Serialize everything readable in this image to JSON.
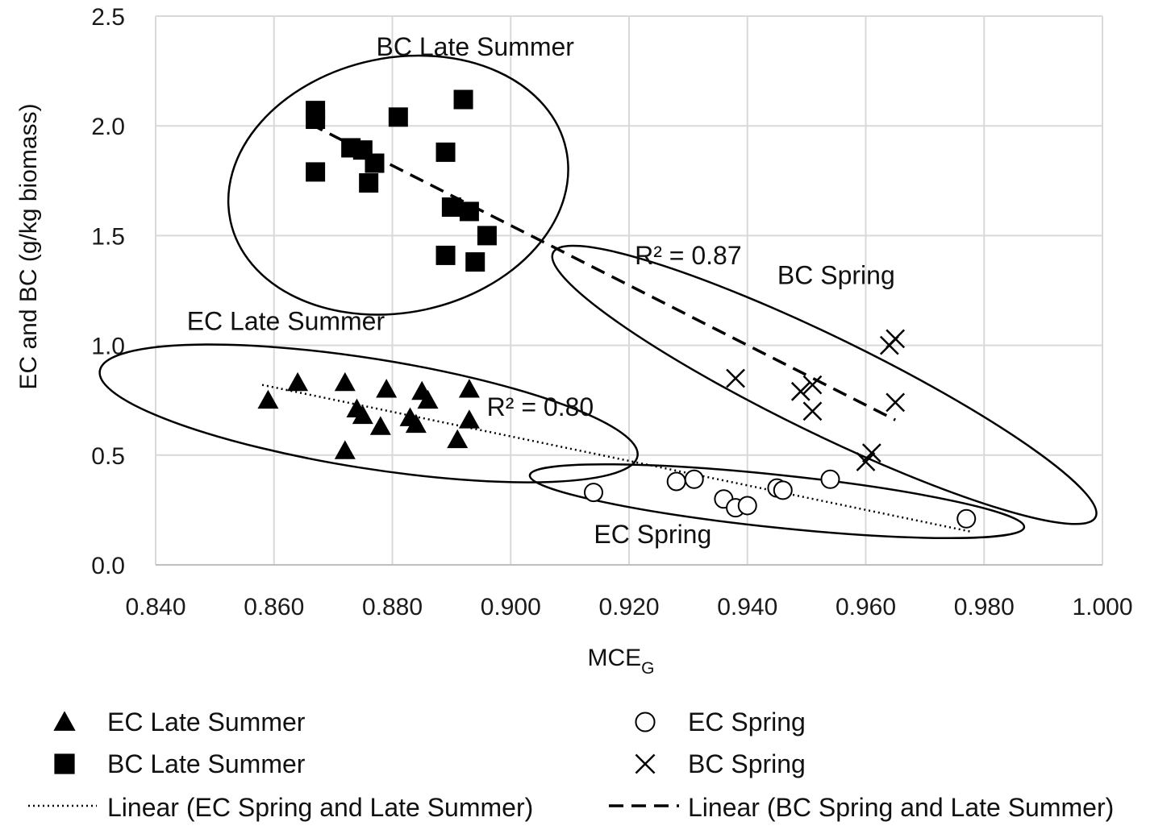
{
  "chart_data": {
    "type": "scatter",
    "xlabel": "MCE",
    "xlabel_subscript": "G",
    "ylabel": "EC and BC (g/kg biomass)",
    "xlim": [
      0.84,
      1.0
    ],
    "ylim": [
      0.0,
      2.5
    ],
    "x_ticks": [
      "0.840",
      "0.860",
      "0.880",
      "0.900",
      "0.920",
      "0.940",
      "0.960",
      "0.980",
      "1.000"
    ],
    "y_ticks": [
      "0.0",
      "0.5",
      "1.0",
      "1.5",
      "2.0",
      "2.5"
    ],
    "grid": true,
    "legend_position": "bottom",
    "series": [
      {
        "name": "EC Late Summer",
        "marker": "triangle",
        "points": [
          [
            0.859,
            0.75
          ],
          [
            0.864,
            0.83
          ],
          [
            0.872,
            0.83
          ],
          [
            0.872,
            0.52
          ],
          [
            0.874,
            0.71
          ],
          [
            0.875,
            0.68
          ],
          [
            0.878,
            0.63
          ],
          [
            0.879,
            0.8
          ],
          [
            0.883,
            0.67
          ],
          [
            0.884,
            0.64
          ],
          [
            0.885,
            0.79
          ],
          [
            0.886,
            0.75
          ],
          [
            0.891,
            0.57
          ],
          [
            0.893,
            0.8
          ],
          [
            0.893,
            0.66
          ]
        ]
      },
      {
        "name": "BC Late Summer",
        "marker": "square",
        "points": [
          [
            0.867,
            2.03
          ],
          [
            0.867,
            2.07
          ],
          [
            0.867,
            1.79
          ],
          [
            0.873,
            1.9
          ],
          [
            0.875,
            1.89
          ],
          [
            0.877,
            1.83
          ],
          [
            0.876,
            1.74
          ],
          [
            0.881,
            2.04
          ],
          [
            0.889,
            1.88
          ],
          [
            0.89,
            1.63
          ],
          [
            0.889,
            1.41
          ],
          [
            0.892,
            2.12
          ],
          [
            0.893,
            1.61
          ],
          [
            0.894,
            1.38
          ],
          [
            0.896,
            1.5
          ]
        ]
      },
      {
        "name": "EC Spring",
        "marker": "circle",
        "points": [
          [
            0.914,
            0.33
          ],
          [
            0.928,
            0.38
          ],
          [
            0.931,
            0.39
          ],
          [
            0.936,
            0.3
          ],
          [
            0.938,
            0.26
          ],
          [
            0.94,
            0.27
          ],
          [
            0.945,
            0.35
          ],
          [
            0.946,
            0.34
          ],
          [
            0.954,
            0.39
          ],
          [
            0.977,
            0.21
          ]
        ]
      },
      {
        "name": "BC Spring",
        "marker": "cross",
        "points": [
          [
            0.938,
            0.85
          ],
          [
            0.949,
            0.79
          ],
          [
            0.951,
            0.82
          ],
          [
            0.951,
            0.7
          ],
          [
            0.96,
            0.47
          ],
          [
            0.961,
            0.51
          ],
          [
            0.964,
            1.0
          ],
          [
            0.965,
            1.03
          ],
          [
            0.965,
            0.74
          ]
        ]
      }
    ],
    "trendlines": [
      {
        "name": "Linear (EC Spring and Late Summer)",
        "style": "dotted",
        "from": [
          0.858,
          0.82
        ],
        "to": [
          0.978,
          0.15
        ],
        "r2_label": "R² = 0.80",
        "label_at": [
          0.905,
          0.68
        ]
      },
      {
        "name": "Linear (BC Spring and Late Summer)",
        "style": "dashed",
        "from": [
          0.866,
          2.01
        ],
        "to": [
          0.965,
          0.66
        ],
        "r2_label": "R² = 0.87",
        "label_at": [
          0.93,
          1.37
        ]
      }
    ],
    "cluster_annotations": [
      {
        "label": "BC Late Summer",
        "label_at": [
          0.894,
          2.32
        ],
        "center": [
          0.881,
          1.73
        ],
        "rx": 0.029,
        "ry": 0.58,
        "angle": -12
      },
      {
        "label": "EC Late Summer",
        "label_at": [
          0.862,
          1.07
        ],
        "center": [
          0.876,
          0.69
        ],
        "rx": 0.046,
        "ry": 0.25,
        "angle": 9
      },
      {
        "label": "BC Spring",
        "label_at": [
          0.955,
          1.28
        ],
        "center": [
          0.953,
          0.82
        ],
        "rx": 0.051,
        "ry": 0.22,
        "angle": 26
      },
      {
        "label": "EC Spring",
        "label_at": [
          0.924,
          0.1
        ],
        "center": [
          0.945,
          0.29
        ],
        "rx": 0.042,
        "ry": 0.12,
        "angle": 6
      }
    ],
    "legend": [
      {
        "marker": "triangle",
        "label": "EC Late Summer"
      },
      {
        "marker": "circle",
        "label": "EC Spring"
      },
      {
        "marker": "square",
        "label": "BC Late Summer"
      },
      {
        "marker": "cross",
        "label": "BC Spring"
      },
      {
        "marker": "dotted",
        "label": "Linear (EC Spring and Late Summer)"
      },
      {
        "marker": "dashed",
        "label": "Linear (BC Spring and Late Summer)"
      }
    ]
  }
}
